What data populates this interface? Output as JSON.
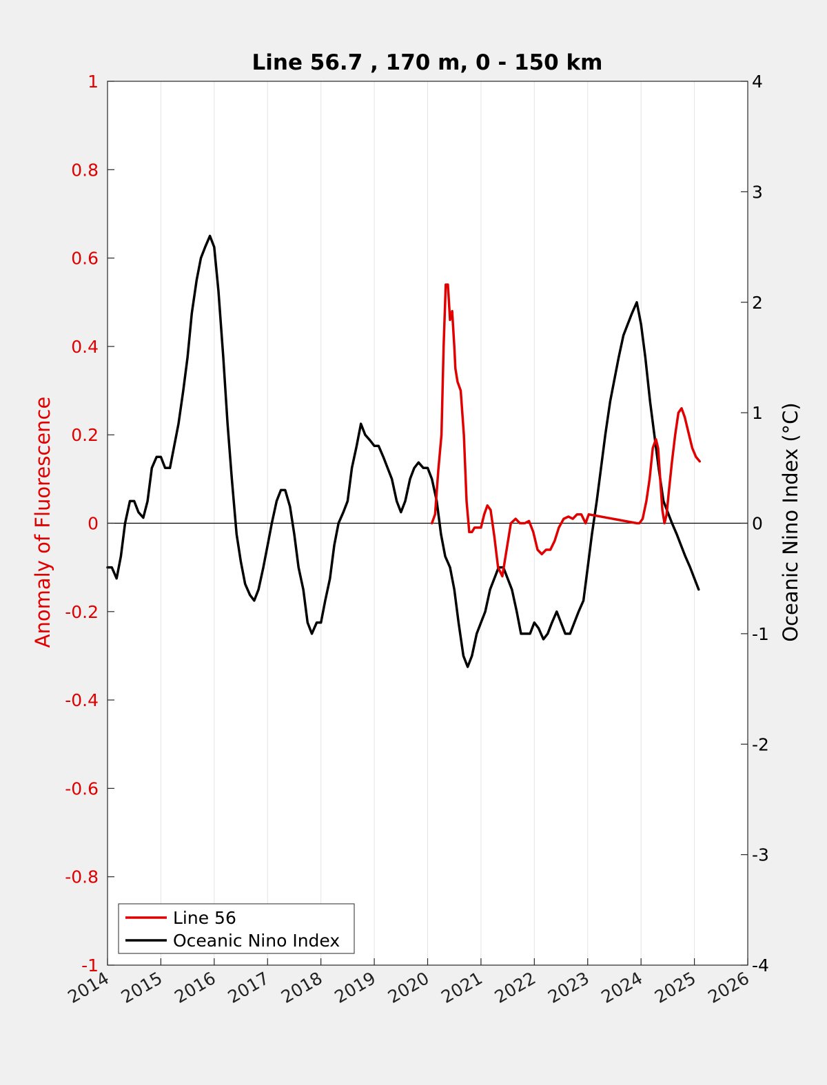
{
  "chart_data": {
    "type": "line",
    "title": "Line 56.7 , 170 m, 0 - 150 km",
    "xlabel": "",
    "ylabel_left": "Anomaly of Fluorescence",
    "ylabel_right": "Oceanic Nino Index (°C)",
    "xlim": [
      2014,
      2026
    ],
    "ylim_left": [
      -1,
      1
    ],
    "ylim_right": [
      -4,
      4
    ],
    "x_ticks": [
      "2014",
      "2015",
      "2016",
      "2017",
      "2018",
      "2019",
      "2020",
      "2021",
      "2022",
      "2023",
      "2024",
      "2025",
      "2026"
    ],
    "y_ticks_left": [
      "1",
      "0.8",
      "0.6",
      "0.4",
      "0.2",
      "0",
      "-0.2",
      "-0.4",
      "-0.6",
      "-0.8",
      "-1"
    ],
    "y_ticks_right": [
      "4",
      "3",
      "2",
      "1",
      "0",
      "-1",
      "-2",
      "-3",
      "-4"
    ],
    "grid": "vertical",
    "legend_position": "bottom-left",
    "colors": {
      "line56": "#e00000",
      "oni": "#000000",
      "left_axis": "#e00000",
      "right_axis": "#000000"
    },
    "series": [
      {
        "name": "Line 56",
        "axis": "left",
        "color": "#e00000",
        "x": [
          2020.08,
          2020.14,
          2020.2,
          2020.26,
          2020.3,
          2020.34,
          2020.38,
          2020.42,
          2020.46,
          2020.5,
          2020.52,
          2020.56,
          2020.62,
          2020.68,
          2020.73,
          2020.78,
          2020.83,
          2020.88,
          2020.94,
          2021.0,
          2021.06,
          2021.12,
          2021.18,
          2021.25,
          2021.32,
          2021.4,
          2021.48,
          2021.56,
          2021.65,
          2021.73,
          2021.82,
          2021.9,
          2021.98,
          2022.06,
          2022.14,
          2022.22,
          2022.3,
          2022.38,
          2022.46,
          2022.55,
          2022.64,
          2022.72,
          2022.8,
          2022.88,
          2022.96,
          2023.02,
          2023.92,
          2023.97,
          2024.03,
          2024.1,
          2024.16,
          2024.22,
          2024.28,
          2024.32,
          2024.36,
          2024.4,
          2024.44,
          2024.48,
          2024.52,
          2024.58,
          2024.64,
          2024.7,
          2024.76,
          2024.82,
          2024.86,
          2024.9,
          2024.96,
          2025.03,
          2025.1
        ],
        "values": [
          0.0,
          0.02,
          0.12,
          0.2,
          0.4,
          0.54,
          0.54,
          0.46,
          0.48,
          0.4,
          0.35,
          0.32,
          0.3,
          0.2,
          0.05,
          -0.02,
          -0.02,
          -0.01,
          -0.01,
          -0.01,
          0.02,
          0.04,
          0.03,
          -0.03,
          -0.1,
          -0.12,
          -0.06,
          0.0,
          0.01,
          0.0,
          0.0,
          0.005,
          -0.02,
          -0.06,
          -0.07,
          -0.06,
          -0.06,
          -0.04,
          -0.01,
          0.01,
          0.015,
          0.01,
          0.02,
          0.02,
          0.0,
          0.02,
          0.0,
          0.0,
          0.01,
          0.05,
          0.1,
          0.17,
          0.19,
          0.17,
          0.1,
          0.03,
          0.0,
          0.02,
          0.07,
          0.14,
          0.2,
          0.25,
          0.26,
          0.24,
          0.22,
          0.2,
          0.17,
          0.15,
          0.14
        ]
      },
      {
        "name": "Oceanic Nino Index",
        "axis": "right",
        "color": "#000000",
        "x": [
          2014.0,
          2014.08,
          2014.17,
          2014.25,
          2014.33,
          2014.42,
          2014.5,
          2014.58,
          2014.67,
          2014.75,
          2014.83,
          2014.92,
          2015.0,
          2015.08,
          2015.17,
          2015.25,
          2015.33,
          2015.42,
          2015.5,
          2015.58,
          2015.67,
          2015.75,
          2015.83,
          2015.92,
          2016.0,
          2016.08,
          2016.17,
          2016.25,
          2016.33,
          2016.42,
          2016.5,
          2016.58,
          2016.67,
          2016.75,
          2016.83,
          2016.92,
          2017.0,
          2017.08,
          2017.17,
          2017.25,
          2017.33,
          2017.42,
          2017.5,
          2017.58,
          2017.67,
          2017.75,
          2017.83,
          2017.92,
          2018.0,
          2018.08,
          2018.17,
          2018.25,
          2018.33,
          2018.42,
          2018.5,
          2018.58,
          2018.67,
          2018.75,
          2018.83,
          2018.92,
          2019.0,
          2019.08,
          2019.17,
          2019.25,
          2019.33,
          2019.42,
          2019.5,
          2019.58,
          2019.67,
          2019.75,
          2019.83,
          2019.92,
          2020.0,
          2020.08,
          2020.17,
          2020.25,
          2020.33,
          2020.42,
          2020.5,
          2020.58,
          2020.67,
          2020.75,
          2020.83,
          2020.92,
          2021.0,
          2021.08,
          2021.17,
          2021.25,
          2021.33,
          2021.42,
          2021.5,
          2021.58,
          2021.67,
          2021.75,
          2021.83,
          2021.92,
          2022.0,
          2022.08,
          2022.17,
          2022.25,
          2022.33,
          2022.42,
          2022.5,
          2022.58,
          2022.67,
          2022.75,
          2022.83,
          2022.92,
          2023.0,
          2023.08,
          2023.17,
          2023.25,
          2023.33,
          2023.42,
          2023.5,
          2023.58,
          2023.67,
          2023.75,
          2023.83,
          2023.92,
          2024.0,
          2024.08,
          2024.17,
          2024.25,
          2024.33,
          2024.42,
          2024.5,
          2024.58,
          2024.67,
          2024.75,
          2024.83,
          2024.92,
          2025.0,
          2025.08
        ],
        "values": [
          -0.4,
          -0.4,
          -0.5,
          -0.3,
          0.0,
          0.2,
          0.2,
          0.1,
          0.05,
          0.2,
          0.5,
          0.6,
          0.6,
          0.5,
          0.5,
          0.7,
          0.9,
          1.2,
          1.5,
          1.9,
          2.2,
          2.4,
          2.5,
          2.6,
          2.5,
          2.1,
          1.5,
          0.9,
          0.4,
          -0.1,
          -0.35,
          -0.55,
          -0.65,
          -0.7,
          -0.6,
          -0.4,
          -0.2,
          0.0,
          0.2,
          0.3,
          0.3,
          0.15,
          -0.1,
          -0.4,
          -0.6,
          -0.9,
          -1.0,
          -0.9,
          -0.9,
          -0.7,
          -0.5,
          -0.2,
          0.0,
          0.1,
          0.2,
          0.5,
          0.7,
          0.9,
          0.8,
          0.75,
          0.7,
          0.7,
          0.6,
          0.5,
          0.4,
          0.2,
          0.1,
          0.2,
          0.4,
          0.5,
          0.55,
          0.5,
          0.5,
          0.4,
          0.2,
          -0.1,
          -0.3,
          -0.4,
          -0.6,
          -0.9,
          -1.2,
          -1.3,
          -1.2,
          -1.0,
          -0.9,
          -0.8,
          -0.6,
          -0.5,
          -0.4,
          -0.4,
          -0.5,
          -0.6,
          -0.8,
          -1.0,
          -1.0,
          -1.0,
          -0.9,
          -0.95,
          -1.05,
          -1.0,
          -0.9,
          -0.8,
          -0.9,
          -1.0,
          -1.0,
          -0.9,
          -0.8,
          -0.7,
          -0.4,
          -0.1,
          0.2,
          0.5,
          0.8,
          1.1,
          1.3,
          1.5,
          1.7,
          1.8,
          1.9,
          2.0,
          1.8,
          1.5,
          1.1,
          0.8,
          0.5,
          0.2,
          0.1,
          0.0,
          -0.1,
          -0.2,
          -0.3,
          -0.4,
          -0.5,
          -0.6
        ]
      }
    ]
  }
}
